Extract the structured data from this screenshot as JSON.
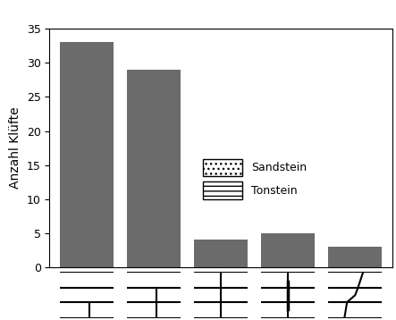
{
  "chart_data": {
    "type": "bar",
    "y_label": "Anzahl Klüfte",
    "categories": [
      null,
      null,
      null,
      null,
      null
    ],
    "values": [
      33,
      29,
      4,
      5,
      3
    ],
    "color": "#6b6b6b",
    "ylim": [
      0,
      35
    ],
    "yticks": [
      0,
      5,
      10,
      15,
      20,
      25,
      30,
      35
    ],
    "tick_labels": "y",
    "annotations": [
      "Sandstein",
      "Tonstein"
    ]
  }
}
